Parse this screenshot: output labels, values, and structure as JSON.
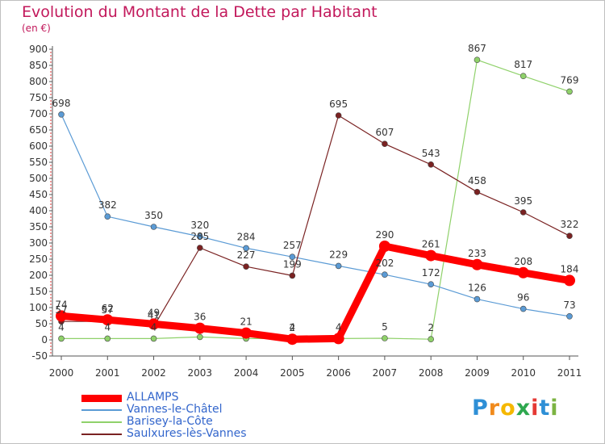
{
  "title": "Evolution du Montant de la Dette par Habitant",
  "subtitle": "(en €)",
  "logo": {
    "letters": [
      "P",
      "r",
      "o",
      "x",
      "i",
      "t",
      "i"
    ],
    "colors": [
      "#2e8fd6",
      "#f08a1c",
      "#f5b800",
      "#2ea84f",
      "#e53935",
      "#2e8fd6",
      "#7cb342"
    ]
  },
  "chart_data": {
    "type": "line",
    "x": [
      "2000",
      "2001",
      "2002",
      "2003",
      "2004",
      "2005",
      "2006",
      "2007",
      "2008",
      "2009",
      "2010",
      "2011"
    ],
    "ylim": [
      -50,
      900
    ],
    "yticks": [
      -50,
      0,
      50,
      100,
      150,
      200,
      250,
      300,
      350,
      400,
      450,
      500,
      550,
      600,
      650,
      700,
      750,
      800,
      850,
      900
    ],
    "grid": false,
    "legend_position": "bottom-left",
    "series": [
      {
        "name": "ALLAMPS",
        "color": "#ff0000",
        "values": [
          74,
          62,
          49,
          36,
          21,
          2,
          4,
          290,
          261,
          233,
          208,
          184
        ],
        "labels": [
          "74",
          "62",
          "49",
          "36",
          "21",
          "2",
          "4",
          "290",
          "261",
          "233",
          "208",
          "184"
        ]
      },
      {
        "name": "Vannes-le-Châtel",
        "color": "#5b9bd5",
        "values": [
          698,
          382,
          350,
          320,
          284,
          257,
          229,
          202,
          172,
          126,
          96,
          73
        ],
        "labels": [
          "698",
          "382",
          "350",
          "320",
          "284",
          "257",
          "229",
          "202",
          "172",
          "126",
          "96",
          "73"
        ]
      },
      {
        "name": "Barisey-la-Côte",
        "color": "#8fd16a",
        "values": [
          4,
          4,
          4,
          9,
          4,
          4,
          4,
          5,
          2,
          867,
          817,
          769
        ],
        "labels": [
          "4",
          "4",
          "4",
          "",
          "",
          "4",
          "",
          "5",
          "2",
          "867",
          "817",
          "769"
        ]
      },
      {
        "name": "Saulxures-lès-Vannes",
        "color": "#7a2222",
        "values": [
          57,
          57,
          41,
          285,
          227,
          199,
          695,
          607,
          543,
          458,
          395,
          322
        ],
        "labels": [
          "57",
          "57",
          "41",
          "285",
          "227",
          "199",
          "695",
          "607",
          "543",
          "458",
          "395",
          "322"
        ]
      }
    ]
  }
}
